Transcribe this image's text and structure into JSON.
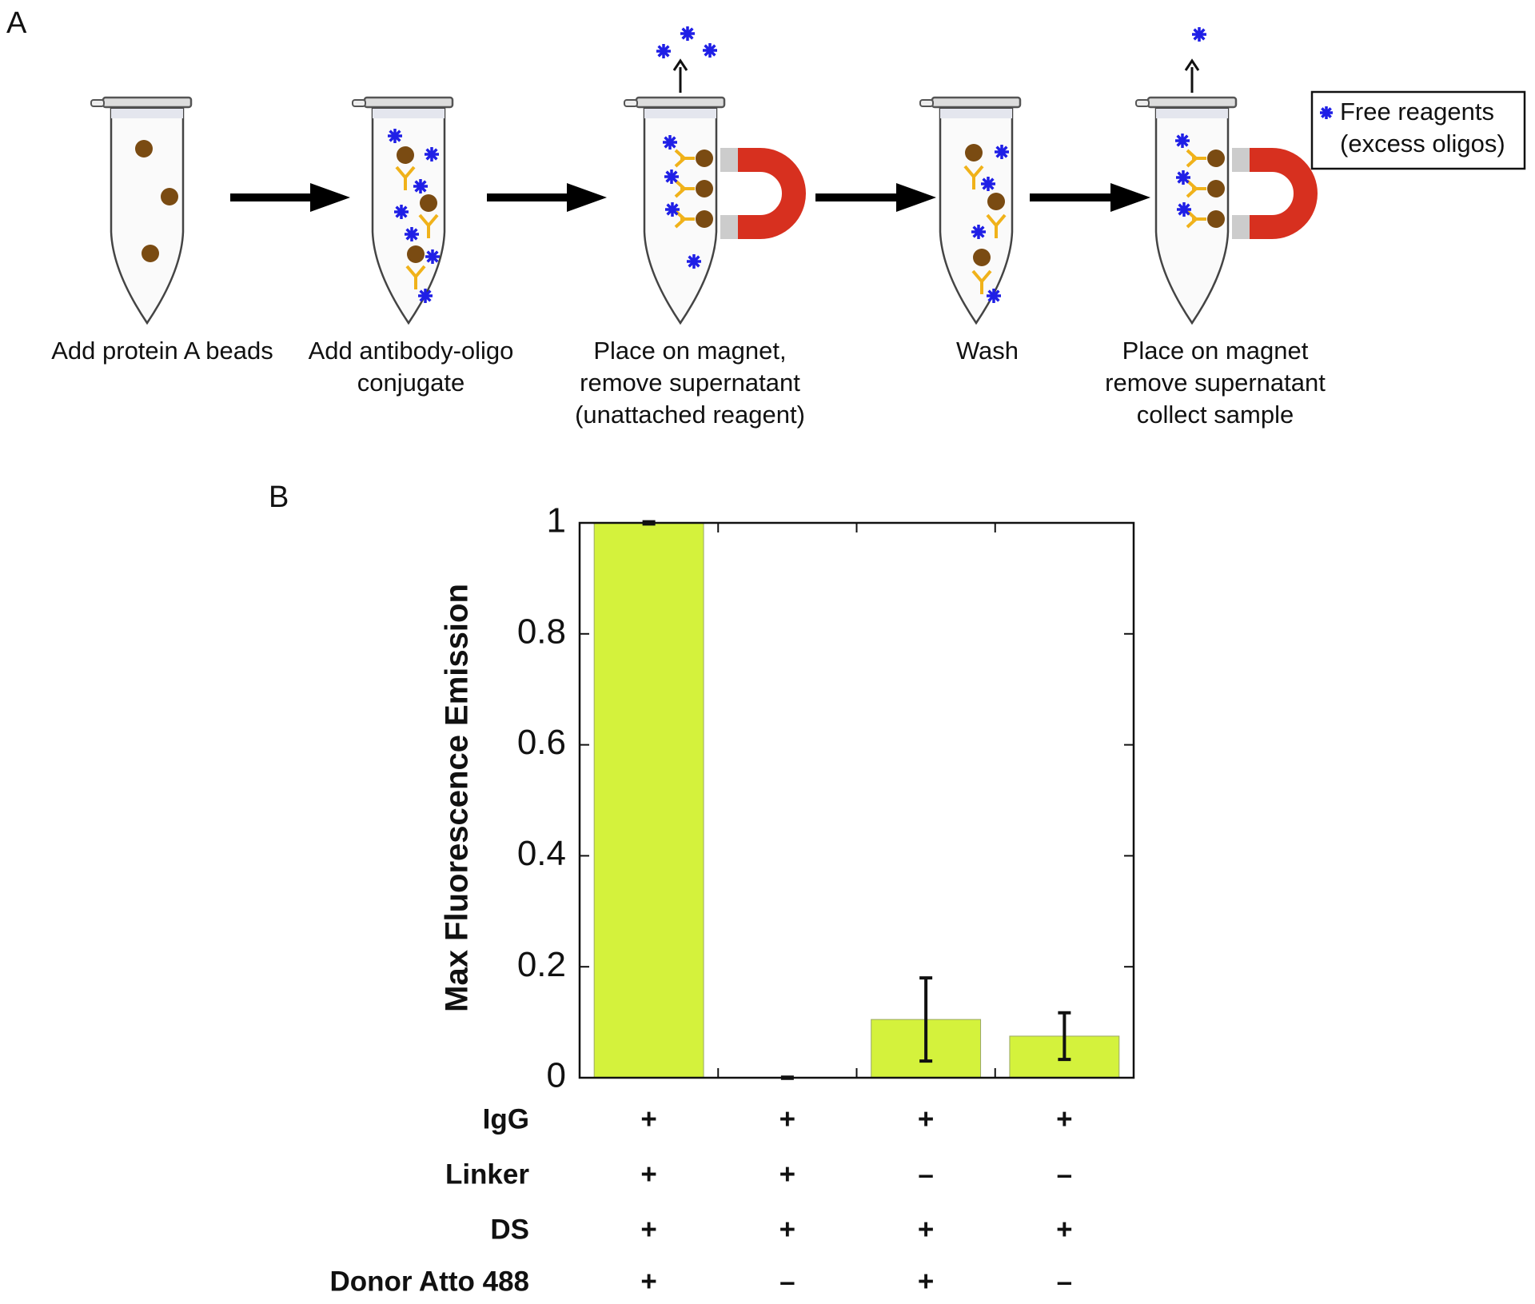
{
  "diagram": {
    "panel_label": "A",
    "steps": [
      {
        "lines": [
          "Add protein A beads"
        ]
      },
      {
        "lines": [
          "Add antibody-oligo",
          "conjugate"
        ]
      },
      {
        "lines": [
          "Place on magnet,",
          "remove supernatant",
          "(unattached reagent)"
        ]
      },
      {
        "lines": [
          "Wash"
        ]
      },
      {
        "lines": [
          "Place on magnet",
          "remove supernatant",
          "collect sample"
        ]
      }
    ],
    "legend": {
      "lines": [
        "Free reagents",
        "(excess oligos)"
      ]
    }
  },
  "chart_data": {
    "type": "bar",
    "panel_label": "B",
    "y_label": "Max Fluorescence Emission",
    "values": [
      1.0,
      0.0,
      0.105,
      0.075
    ],
    "errors": [
      0.002,
      0.001,
      0.075,
      0.042
    ],
    "color": "#d4f23c",
    "ylim": [
      0,
      1
    ],
    "yticks": [
      0,
      0.2,
      0.4,
      0.6,
      0.8,
      1
    ],
    "conditions": [
      {
        "name": "IgG",
        "marks": [
          "+",
          "+",
          "+",
          "+"
        ]
      },
      {
        "name": "Linker",
        "marks": [
          "+",
          "+",
          "–",
          "–"
        ]
      },
      {
        "name": "DS",
        "marks": [
          "+",
          "+",
          "+",
          "+"
        ]
      },
      {
        "name": "Donor Atto 488",
        "marks": [
          "+",
          "–",
          "+",
          "–"
        ]
      }
    ]
  }
}
